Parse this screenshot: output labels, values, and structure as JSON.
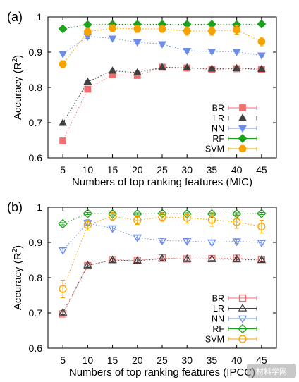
{
  "chart_data": [
    {
      "type": "scatter",
      "panel_label": "(a)",
      "x": [
        5,
        10,
        15,
        20,
        25,
        30,
        35,
        40,
        45
      ],
      "xlabel": "Numbers of top ranking features (MIC)",
      "ylabel": "Accuracy (R²)",
      "ylabel_main": "Accuracy (R",
      "ylabel_sup": "2",
      "ylabel_close": ")",
      "xlim": [
        2,
        48
      ],
      "ylim": [
        0.6,
        1.0
      ],
      "xticks": [
        "5",
        "10",
        "15",
        "20",
        "25",
        "30",
        "35",
        "40",
        "45"
      ],
      "yticks": [
        "0.6",
        "0.7",
        "0.8",
        "0.9",
        "1"
      ],
      "grid": false,
      "marker_fill": "filled",
      "legend_position": "bottom-right",
      "series": [
        {
          "name": "BR",
          "marker": "square",
          "color": "#f07070",
          "values": [
            0.648,
            0.795,
            0.836,
            0.834,
            0.857,
            0.855,
            0.851,
            0.853,
            0.851
          ],
          "errors": [
            0.004,
            0.005,
            0.005,
            0.005,
            0.004,
            0.004,
            0.004,
            0.004,
            0.004
          ]
        },
        {
          "name": "LR",
          "marker": "triangle-up",
          "color": "#404040",
          "values": [
            0.699,
            0.816,
            0.847,
            0.842,
            0.857,
            0.856,
            0.853,
            0.854,
            0.852
          ],
          "errors": [
            0.004,
            0.004,
            0.004,
            0.004,
            0.004,
            0.004,
            0.004,
            0.004,
            0.004
          ]
        },
        {
          "name": "NN",
          "marker": "triangle-down",
          "color": "#6b8ce8",
          "values": [
            0.895,
            0.945,
            0.939,
            0.928,
            0.923,
            0.904,
            0.902,
            0.901,
            0.891
          ],
          "errors": [
            0.005,
            0.006,
            0.005,
            0.005,
            0.005,
            0.005,
            0.005,
            0.005,
            0.005
          ]
        },
        {
          "name": "RF",
          "marker": "diamond",
          "color": "#1aa31a",
          "values": [
            0.966,
            0.978,
            0.979,
            0.979,
            0.979,
            0.979,
            0.979,
            0.978,
            0.98
          ],
          "errors": [
            0.003,
            0.003,
            0.003,
            0.003,
            0.003,
            0.003,
            0.003,
            0.003,
            0.003
          ]
        },
        {
          "name": "SVM",
          "marker": "circle",
          "color": "#f5a300",
          "values": [
            0.866,
            0.958,
            0.968,
            0.966,
            0.966,
            0.96,
            0.96,
            0.963,
            0.93
          ],
          "errors": [
            0.01,
            0.01,
            0.01,
            0.01,
            0.01,
            0.012,
            0.012,
            0.012,
            0.012
          ]
        }
      ]
    },
    {
      "type": "scatter",
      "panel_label": "(b)",
      "x": [
        5,
        10,
        15,
        20,
        25,
        30,
        35,
        40,
        45
      ],
      "xlabel": "Numbers of top ranking features (IPCC)",
      "ylabel": "Accuracy (R²)",
      "ylabel_main": "Accuracy (R",
      "ylabel_sup": "2",
      "ylabel_close": ")",
      "xlim": [
        2,
        48
      ],
      "ylim": [
        0.6,
        1.0
      ],
      "xticks": [
        "5",
        "10",
        "15",
        "20",
        "25",
        "30",
        "35",
        "40",
        "45"
      ],
      "yticks": [
        "0.6",
        "0.7",
        "0.8",
        "0.9",
        "1"
      ],
      "grid": false,
      "marker_fill": "open",
      "legend_position": "bottom-right",
      "series": [
        {
          "name": "BR",
          "marker": "square",
          "color": "#f07070",
          "values": [
            0.697,
            0.834,
            0.851,
            0.849,
            0.856,
            0.853,
            0.854,
            0.855,
            0.852
          ],
          "errors": [
            0.005,
            0.005,
            0.005,
            0.005,
            0.005,
            0.005,
            0.005,
            0.005,
            0.005
          ]
        },
        {
          "name": "LR",
          "marker": "triangle-up",
          "color": "#404040",
          "values": [
            0.701,
            0.835,
            0.85,
            0.848,
            0.854,
            0.853,
            0.853,
            0.852,
            0.85
          ],
          "errors": [
            0.005,
            0.005,
            0.005,
            0.005,
            0.005,
            0.005,
            0.005,
            0.005,
            0.005
          ]
        },
        {
          "name": "NN",
          "marker": "triangle-down",
          "color": "#6b8ce8",
          "values": [
            0.878,
            0.955,
            0.94,
            0.914,
            0.905,
            0.904,
            0.9,
            0.903,
            0.899
          ],
          "errors": [
            0.006,
            0.006,
            0.006,
            0.006,
            0.006,
            0.006,
            0.006,
            0.006,
            0.006
          ]
        },
        {
          "name": "RF",
          "marker": "diamond",
          "color": "#1aa31a",
          "values": [
            0.953,
            0.982,
            0.981,
            0.981,
            0.982,
            0.981,
            0.981,
            0.981,
            0.982
          ],
          "errors": [
            0.003,
            0.003,
            0.003,
            0.003,
            0.003,
            0.003,
            0.003,
            0.003,
            0.003
          ]
        },
        {
          "name": "SVM",
          "marker": "circle",
          "color": "#f5a300",
          "values": [
            0.768,
            0.95,
            0.974,
            0.963,
            0.972,
            0.97,
            0.964,
            0.958,
            0.945
          ],
          "errors": [
            0.025,
            0.015,
            0.012,
            0.012,
            0.012,
            0.015,
            0.018,
            0.018,
            0.018
          ]
        }
      ]
    }
  ],
  "watermark": "材料学网"
}
